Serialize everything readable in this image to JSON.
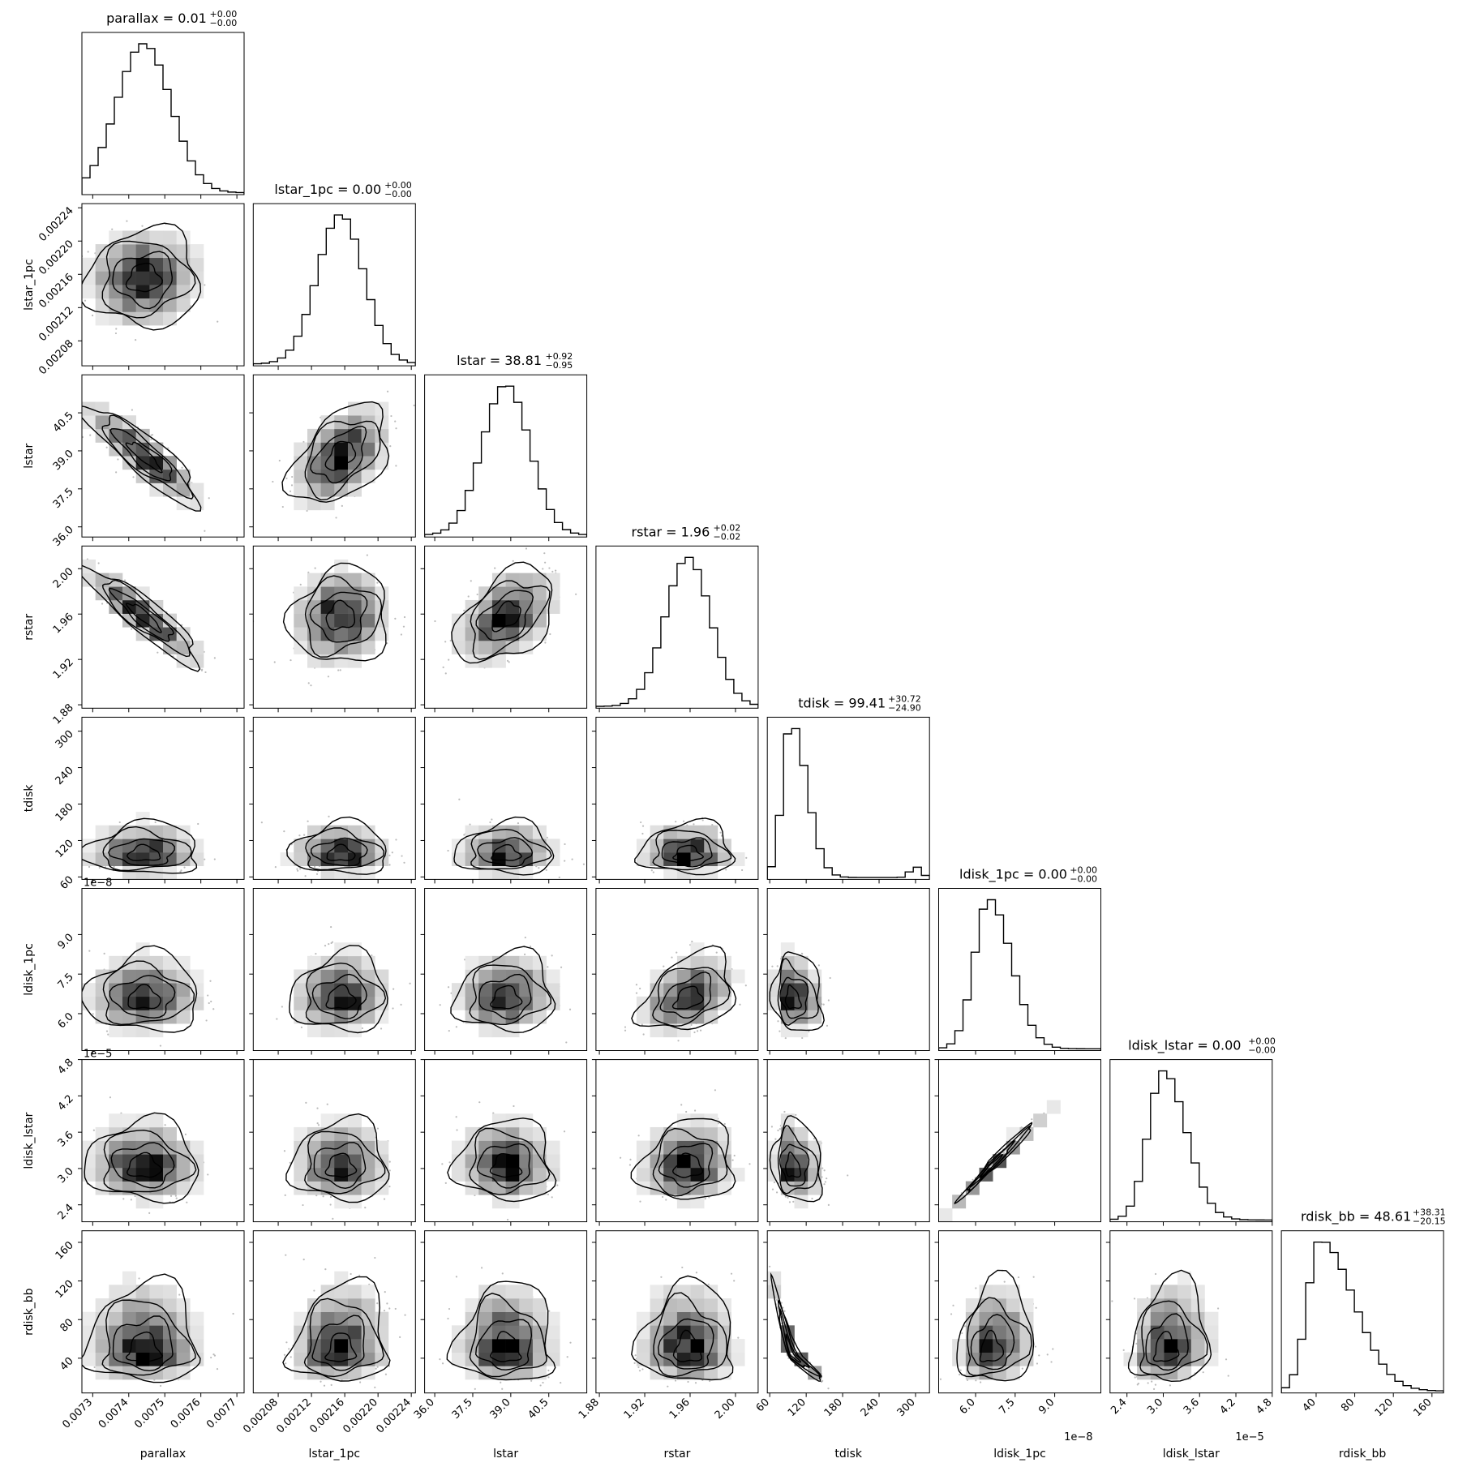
{
  "chart_data": {
    "type": "corner",
    "parameters": [
      {
        "key": "parallax",
        "label": "parallax",
        "range": [
          0.00727,
          0.00772
        ],
        "ticks": [
          "0.0073",
          "0.0074",
          "0.0075",
          "0.0076",
          "0.0077"
        ],
        "tick_values": [
          0.0073,
          0.0074,
          0.0075,
          0.0076,
          0.0077
        ],
        "title": {
          "text": "parallax = 0.01",
          "plus": "+0.00",
          "minus": "−0.00"
        },
        "dist": {
          "type": "normal",
          "mu": 0.007442,
          "sd": 7.5e-05
        }
      },
      {
        "key": "lstar_1pc",
        "label": "lstar_1pc",
        "range": [
          0.00205,
          0.002245
        ],
        "ticks": [
          "0.00208",
          "0.00212",
          "0.00216",
          "0.00220",
          "0.00224"
        ],
        "tick_values": [
          0.00208,
          0.00212,
          0.00216,
          0.0022,
          0.00224
        ],
        "title": {
          "text": "lstar_1pc = 0.00",
          "plus": "+0.00",
          "minus": "−0.00"
        },
        "dist": {
          "type": "normal",
          "mu": 0.002155,
          "sd": 2.8e-05
        }
      },
      {
        "key": "lstar",
        "label": "lstar",
        "range": [
          35.6,
          42.0
        ],
        "ticks": [
          "36.0",
          "37.5",
          "39.0",
          "40.5"
        ],
        "tick_values": [
          36.0,
          37.5,
          39.0,
          40.5
        ],
        "title": {
          "text": "lstar = 38.81",
          "plus": "+0.92",
          "minus": "−0.95"
        },
        "dist": {
          "type": "normal",
          "mu": 38.81,
          "sd": 0.93
        }
      },
      {
        "key": "rstar",
        "label": "rstar",
        "range": [
          1.877,
          2.02
        ],
        "ticks": [
          "1.88",
          "1.92",
          "1.96",
          "2.00"
        ],
        "tick_values": [
          1.88,
          1.92,
          1.96,
          2.0
        ],
        "title": {
          "text": "rstar = 1.96",
          "plus": "+0.02",
          "minus": "−0.02"
        },
        "dist": {
          "type": "normal",
          "mu": 1.958,
          "sd": 0.02
        }
      },
      {
        "key": "tdisk",
        "label": "tdisk",
        "range": [
          56,
          323
        ],
        "ticks": [
          "60",
          "120",
          "180",
          "240",
          "300"
        ],
        "tick_values": [
          60,
          120,
          180,
          240,
          300
        ],
        "title": {
          "text": "tdisk = 99.41",
          "plus": "+30.72",
          "minus": "−24.90"
        },
        "dist": {
          "type": "skew",
          "mu": 95,
          "sdl": 14,
          "sdr": 26,
          "tail": 300
        }
      },
      {
        "key": "ldisk_1pc",
        "label": "ldisk_1pc",
        "range": [
          4.6e-08,
          1.075e-07
        ],
        "ticks": [
          "6.0",
          "7.5",
          "9.0"
        ],
        "tick_values": [
          6e-08,
          7.5e-08,
          9e-08
        ],
        "offset": "1e−8",
        "title": {
          "text": "ldisk_1pc = 0.00",
          "plus": "+0.00",
          "minus": "−0.00"
        },
        "dist": {
          "type": "skew",
          "mu": 6.5e-08,
          "sdl": 5.5e-09,
          "sdr": 8.5e-09
        }
      },
      {
        "key": "ldisk_lstar",
        "label": "ldisk_lstar",
        "range": [
          2.12e-05,
          4.8e-05
        ],
        "ticks": [
          "2.4",
          "3.0",
          "3.6",
          "4.2",
          "4.8"
        ],
        "tick_values": [
          2.4e-05,
          3e-05,
          3.6e-05,
          4.2e-05,
          4.8e-05
        ],
        "offset": "1e−5",
        "title": {
          "text": "ldisk_lstar = 0.00",
          "plus": "+0.00",
          "minus": "−0.00"
        },
        "dist": {
          "type": "skew",
          "mu": 3e-05,
          "sdl": 2.5e-06,
          "sdr": 3.8e-06
        }
      },
      {
        "key": "rdisk_bb",
        "label": "rdisk_bb",
        "range": [
          4,
          172
        ],
        "ticks": [
          "40",
          "80",
          "120",
          "160"
        ],
        "tick_values": [
          40,
          80,
          120,
          160
        ],
        "title": {
          "text": "rdisk_bb = 48.61",
          "plus": "+38.31",
          "minus": "−20.15"
        },
        "dist": {
          "type": "skew",
          "mu": 44,
          "sdl": 13,
          "sdr": 35
        }
      }
    ],
    "panel_corr": {
      "1,0": 0.05,
      "2,0": -0.88,
      "2,1": 0.45,
      "3,0": -0.9,
      "3,1": 0.1,
      "3,2": 0.45,
      "4,0": 0.0,
      "4,1": 0.0,
      "4,2": 0.0,
      "4,3": 0.0,
      "5,0": 0.0,
      "5,1": 0.05,
      "5,2": 0.05,
      "5,3": 0.35,
      "5,4": -0.15,
      "6,0": -0.05,
      "6,1": 0.0,
      "6,2": -0.05,
      "6,3": 0.1,
      "6,4": -0.15,
      "6,5": 0.99,
      "7,0": 0.0,
      "7,1": 0.1,
      "7,2": 0.0,
      "7,3": 0.0,
      "7,4": -0.97,
      "7,5": 0.15,
      "7,6": 0.15
    },
    "grid": false,
    "legend": "none"
  }
}
